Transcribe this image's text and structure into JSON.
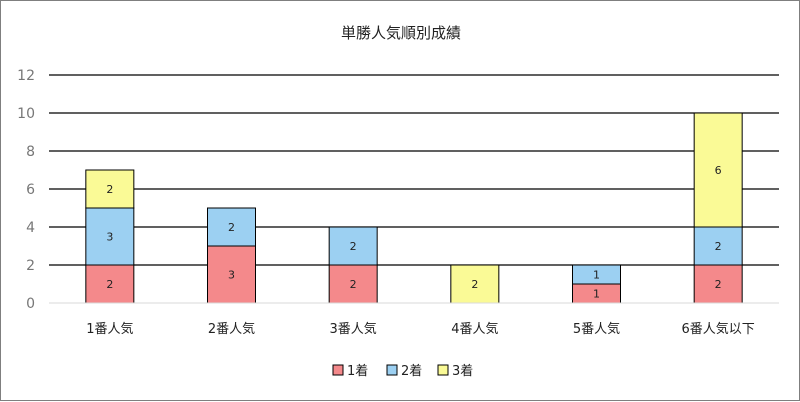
{
  "chart_data": {
    "type": "bar",
    "stacked": true,
    "title": "単勝人気順別成績",
    "categories": [
      "1番人気",
      "2番人気",
      "3番人気",
      "4番人気",
      "5番人気",
      "6番人気以下"
    ],
    "series": [
      {
        "name": "1着",
        "values": [
          2,
          3,
          2,
          0,
          1,
          2
        ],
        "color": "#f4898b"
      },
      {
        "name": "2着",
        "values": [
          3,
          2,
          2,
          0,
          1,
          2
        ],
        "color": "#9cd0f2"
      },
      {
        "name": "3着",
        "values": [
          2,
          0,
          0,
          2,
          0,
          6
        ],
        "color": "#fafa96"
      }
    ],
    "ylim": [
      0,
      12
    ],
    "yticks": [
      0,
      2,
      4,
      6,
      8,
      10,
      12
    ],
    "grid": true,
    "legend": "bottom"
  }
}
